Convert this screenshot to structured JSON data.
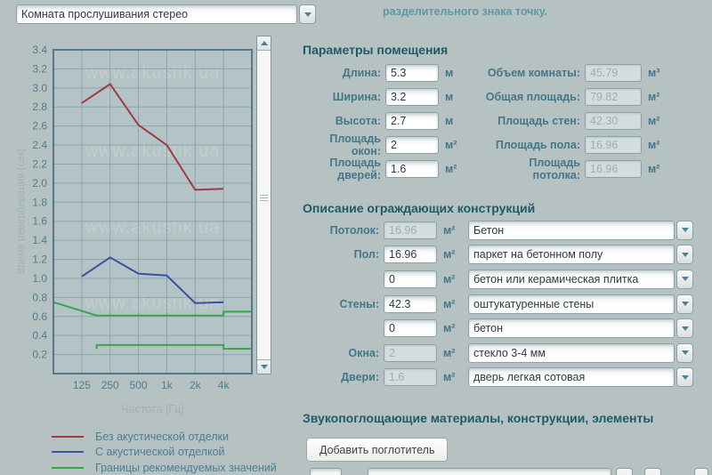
{
  "header": {
    "room_select_value": "Комната прослушивания стерео",
    "note_line": "разделительного знака точку."
  },
  "watermark": "www.akustik.ua",
  "chart_data": {
    "type": "line",
    "xlabel": "Частота [Гц]",
    "ylabel": "Время реверберации [сек]",
    "x_scale": "log2",
    "x_range_hz": [
      62.5,
      8000
    ],
    "x_ticks": [
      "125",
      "250",
      "500",
      "1k",
      "2k",
      "4k"
    ],
    "x_tick_freqs": [
      125,
      250,
      500,
      1000,
      2000,
      4000
    ],
    "ylim": [
      0,
      3.4
    ],
    "y_tick_step": 0.2,
    "grid": true,
    "legend_position": "below-left",
    "series": [
      {
        "name": "Без акустической отделки",
        "color": "#9e3a42",
        "x": [
          125,
          250,
          500,
          1000,
          2000,
          4000
        ],
        "y": [
          2.84,
          3.04,
          2.61,
          2.4,
          1.93,
          1.94
        ]
      },
      {
        "name": "С акустической отделкой",
        "color": "#3a51a3",
        "x": [
          125,
          250,
          500,
          1000,
          2000,
          4000
        ],
        "y": [
          1.02,
          1.22,
          1.05,
          1.03,
          0.74,
          0.75
        ]
      },
      {
        "name": "Границы рекомендуемых значений (верхняя)",
        "color": "#3aa44a",
        "x": [
          62.5,
          180,
          4000,
          4000,
          8000
        ],
        "y": [
          0.75,
          0.61,
          0.61,
          0.65,
          0.65
        ]
      },
      {
        "name": "Границы рекомендуемых значений (нижняя)",
        "color": "#3aa44a",
        "x": [
          180,
          180,
          4000,
          4000,
          8000
        ],
        "y": [
          0.26,
          0.3,
          0.3,
          0.26,
          0.26
        ]
      }
    ],
    "legend": [
      {
        "color": "#9e3a42",
        "label": "Без акустической отделки"
      },
      {
        "color": "#3a51a3",
        "label": "С акустической отделкой"
      },
      {
        "color": "#3aa44a",
        "label": "Границы рекомендуемых значений"
      }
    ]
  },
  "room_params": {
    "title": "Параметры помещения",
    "left": [
      {
        "label": "Длина:",
        "value": "5.3",
        "unit": "м"
      },
      {
        "label": "Ширина:",
        "value": "3.2",
        "unit": "м"
      },
      {
        "label": "Высота:",
        "value": "2.7",
        "unit": "м"
      },
      {
        "label": "Площадь окон:",
        "value": "2",
        "unit": "м²"
      },
      {
        "label": "Площадь дверей:",
        "value": "1.6",
        "unit": "м²"
      }
    ],
    "right": [
      {
        "label": "Объем комнаты:",
        "value": "45.79",
        "unit": "м³"
      },
      {
        "label": "Общая площадь:",
        "value": "79.82",
        "unit": "м²"
      },
      {
        "label": "Площадь стен:",
        "value": "42.30",
        "unit": "м²"
      },
      {
        "label": "Площадь пола:",
        "value": "16.96",
        "unit": "м²"
      },
      {
        "label": "Площадь потолка:",
        "value": "16.96",
        "unit": "м²"
      }
    ]
  },
  "constructions": {
    "title": "Описание ограждающих конструкций",
    "rows": [
      {
        "label": "Потолок:",
        "area": "16.96",
        "unit": "м²",
        "material": "Бетон"
      },
      {
        "label": "Пол:",
        "area": "16.96",
        "unit": "м²",
        "material": "паркет на бетонном полу"
      },
      {
        "label": "",
        "area": "0",
        "unit": "м²",
        "material": "бетон или керамическая плитка"
      },
      {
        "label": "Стены:",
        "area": "42.3",
        "unit": "м²",
        "material": "оштукатуренные стены"
      },
      {
        "label": "",
        "area": "0",
        "unit": "м²",
        "material": "бетон"
      },
      {
        "label": "Окна:",
        "area": "2",
        "unit": "м²",
        "material": "стекло 3-4 мм"
      },
      {
        "label": "Двери:",
        "area": "1.6",
        "unit": "м²",
        "material": "дверь легкая сотовая"
      }
    ]
  },
  "absorbers": {
    "title": "Звукопоглощающие материалы, конструкции, элементы",
    "add_button_label": "Добавить поглотитель"
  }
}
